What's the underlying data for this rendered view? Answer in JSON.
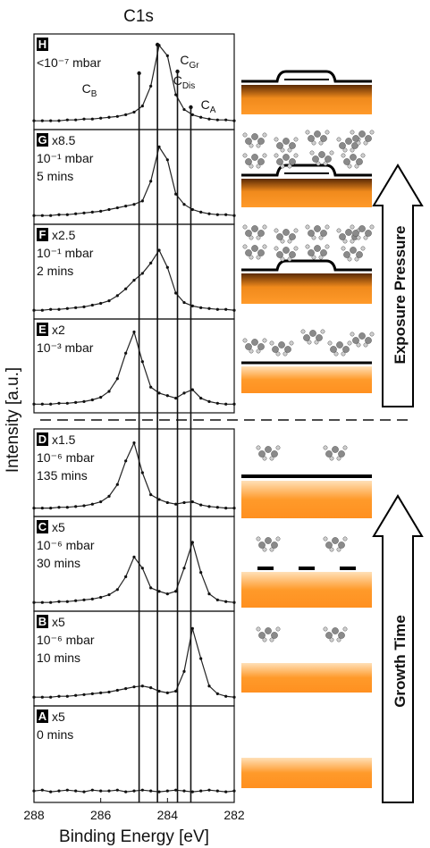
{
  "chart_data": {
    "type": "spectra",
    "title": "C1s",
    "xlabel": "Binding Energy [eV]",
    "ylabel": "Intensity [a.u.]",
    "xlim": [
      288,
      282
    ],
    "xticks": [
      288,
      286,
      284,
      282
    ],
    "ylim": [
      0,
      100
    ],
    "x": [
      288,
      287.75,
      287.5,
      287.25,
      287,
      286.75,
      286.5,
      286.25,
      286,
      285.75,
      285.5,
      285.25,
      285,
      284.75,
      284.5,
      284.25,
      284,
      283.75,
      283.5,
      283.25,
      283,
      282.75,
      282.5,
      282.25,
      282
    ],
    "peaks": [
      {
        "label": "C",
        "sub": "B",
        "position": 284.85
      },
      {
        "label": "C",
        "sub": "Gr",
        "position": 284.3
      },
      {
        "label": "C",
        "sub": "Dis",
        "position": 283.7
      },
      {
        "label": "C",
        "sub": "A",
        "position": 283.3
      }
    ],
    "arrows": [
      "Exposure Pressure",
      "Growth Time"
    ],
    "panels": [
      {
        "label": "H",
        "lines": [
          "<10⁻⁷ mbar"
        ],
        "values": [
          5,
          5,
          5,
          5,
          6,
          6,
          7,
          7,
          8,
          9,
          10,
          12,
          15,
          22,
          45,
          92,
          80,
          35,
          18,
          12,
          9,
          7,
          6,
          6,
          5
        ]
      },
      {
        "label": "G",
        "factor": "x8.5",
        "lines": [
          "10⁻¹ mbar",
          "5 mins"
        ],
        "values": [
          5,
          5,
          5,
          6,
          6,
          7,
          8,
          9,
          10,
          12,
          14,
          16,
          18,
          22,
          45,
          85,
          70,
          30,
          18,
          12,
          9,
          7,
          6,
          6,
          5
        ]
      },
      {
        "label": "F",
        "factor": "x2.5",
        "lines": [
          "10⁻¹ mbar",
          "2 mins"
        ],
        "values": [
          5,
          5,
          6,
          6,
          7,
          8,
          9,
          11,
          13,
          16,
          22,
          30,
          40,
          48,
          60,
          75,
          55,
          25,
          14,
          10,
          8,
          7,
          6,
          6,
          5
        ]
      },
      {
        "label": "E",
        "factor": "x2",
        "lines": [
          "10⁻³ mbar"
        ],
        "values": [
          5,
          5,
          5,
          6,
          6,
          7,
          8,
          10,
          13,
          20,
          35,
          65,
          90,
          55,
          25,
          18,
          15,
          12,
          18,
          22,
          12,
          8,
          6,
          5,
          5
        ]
      },
      {
        "label": "D",
        "factor": "x1.5",
        "lines": [
          "10⁻⁶ mbar",
          "135 mins"
        ],
        "values": [
          5,
          5,
          5,
          6,
          6,
          7,
          8,
          10,
          13,
          20,
          35,
          65,
          88,
          50,
          22,
          16,
          12,
          10,
          12,
          13,
          9,
          7,
          6,
          5,
          5
        ]
      },
      {
        "label": "C",
        "factor": "x5",
        "lines": [
          "10⁻⁶ mbar",
          "30 mins"
        ],
        "values": [
          5,
          5,
          5,
          6,
          6,
          7,
          8,
          9,
          11,
          14,
          20,
          35,
          58,
          45,
          22,
          18,
          15,
          18,
          45,
          75,
          40,
          15,
          8,
          6,
          5
        ]
      },
      {
        "label": "B",
        "factor": "x5",
        "lines": [
          "10⁻⁶ mbar",
          "10 mins"
        ],
        "values": [
          5,
          5,
          5,
          6,
          6,
          7,
          8,
          9,
          10,
          11,
          13,
          15,
          17,
          18,
          16,
          12,
          10,
          12,
          35,
          85,
          50,
          18,
          9,
          6,
          5
        ]
      },
      {
        "label": "A",
        "factor": "x5",
        "lines": [
          "0 mins"
        ],
        "values": [
          8,
          9,
          7,
          8,
          9,
          8,
          7,
          9,
          8,
          8,
          9,
          7,
          8,
          9,
          8,
          7,
          8,
          9,
          8,
          7,
          8,
          9,
          8,
          7,
          8
        ]
      }
    ]
  }
}
